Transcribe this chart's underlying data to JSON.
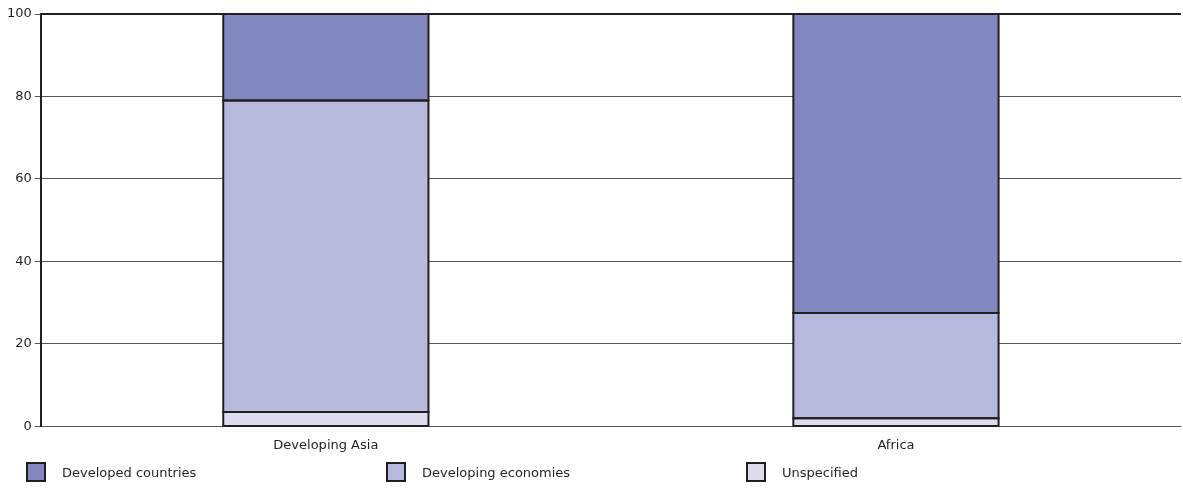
{
  "chart_data": {
    "type": "bar",
    "stacked": true,
    "categories": [
      "Developing Asia",
      "Africa"
    ],
    "series": [
      {
        "name": "Unspecified",
        "color": "#dcdcee",
        "values": [
          3.5,
          2
        ]
      },
      {
        "name": "Developing economies",
        "color": "#b6b8dc",
        "values": [
          75.5,
          25.5
        ]
      },
      {
        "name": "Developed countries",
        "color": "#8187bf",
        "values": [
          21,
          72.5
        ]
      }
    ],
    "ylim": [
      0,
      100
    ],
    "yticks": [
      0,
      20,
      40,
      60,
      80,
      100
    ],
    "grid": "y",
    "legend": "bottom"
  }
}
